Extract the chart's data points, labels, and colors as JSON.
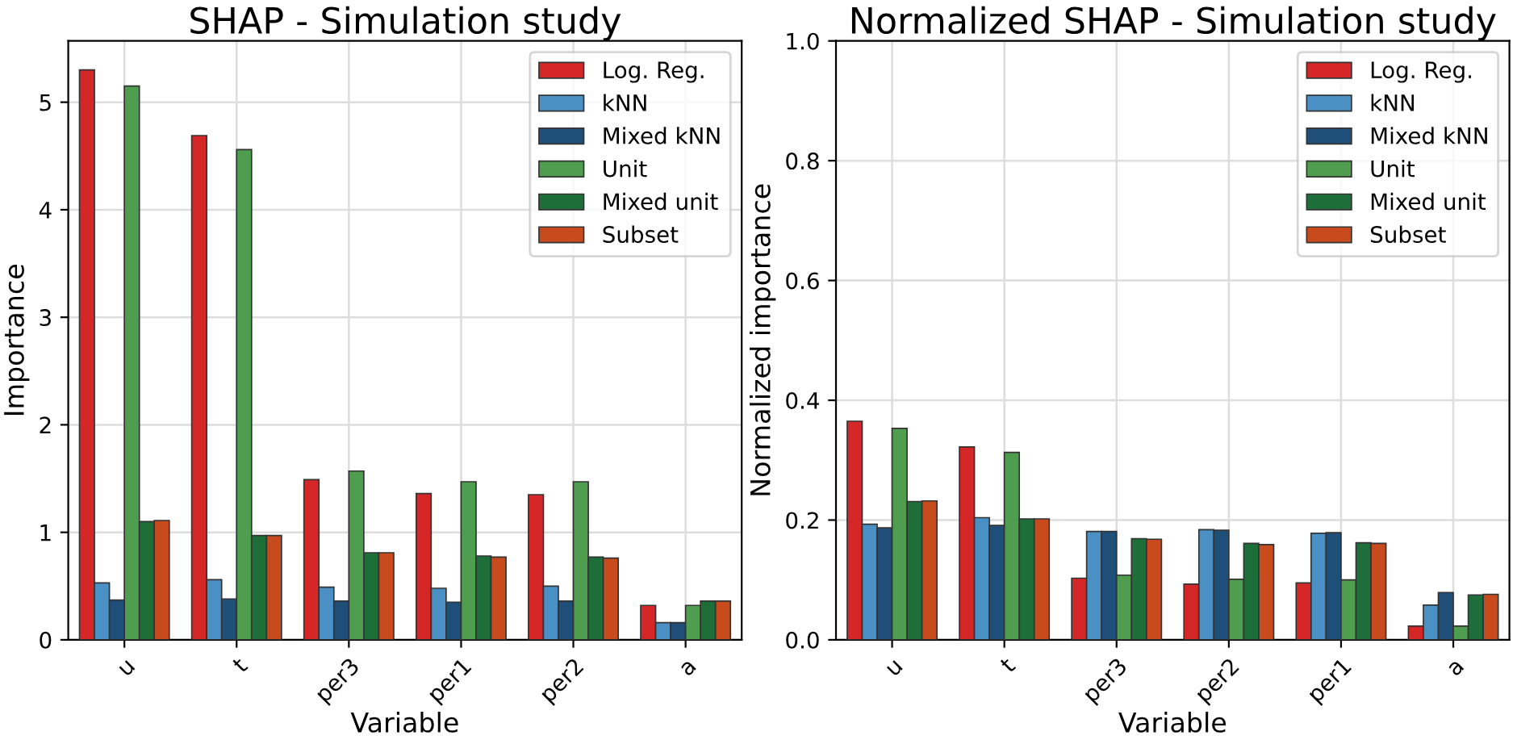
{
  "chart_data": [
    {
      "type": "bar",
      "title": "SHAP - Simulation study",
      "xlabel": "Variable",
      "ylabel": "Importance",
      "categories": [
        "u",
        "t",
        "per3",
        "per1",
        "per2",
        "a"
      ],
      "series": [
        {
          "name": "Log. Reg.",
          "color": "#d62728",
          "values": [
            5.3,
            4.69,
            1.49,
            1.36,
            1.35,
            0.32
          ]
        },
        {
          "name": "kNN",
          "color": "#4a90c4",
          "values": [
            0.53,
            0.56,
            0.49,
            0.48,
            0.5,
            0.16
          ]
        },
        {
          "name": "Mixed kNN",
          "color": "#1f4e79",
          "values": [
            0.37,
            0.38,
            0.36,
            0.35,
            0.36,
            0.16
          ]
        },
        {
          "name": "Unit",
          "color": "#4f9d4f",
          "values": [
            5.15,
            4.56,
            1.57,
            1.47,
            1.47,
            0.32
          ]
        },
        {
          "name": "Mixed unit",
          "color": "#1e6e3a",
          "values": [
            1.1,
            0.97,
            0.81,
            0.78,
            0.77,
            0.36
          ]
        },
        {
          "name": "Subset",
          "color": "#c84b1e",
          "values": [
            1.11,
            0.97,
            0.81,
            0.77,
            0.76,
            0.36
          ]
        }
      ],
      "ylim": [
        0,
        5.57
      ],
      "yticks": [
        0,
        1,
        2,
        3,
        4,
        5
      ],
      "grid": true,
      "legend": "top right"
    },
    {
      "type": "bar",
      "title": "Normalized SHAP - Simulation study",
      "xlabel": "Variable",
      "ylabel": "Normalized importance",
      "categories": [
        "u",
        "t",
        "per3",
        "per2",
        "per1",
        "a"
      ],
      "series": [
        {
          "name": "Log. Reg.",
          "color": "#d62728",
          "values": [
            0.365,
            0.322,
            0.103,
            0.093,
            0.095,
            0.023
          ]
        },
        {
          "name": "kNN",
          "color": "#4a90c4",
          "values": [
            0.193,
            0.204,
            0.181,
            0.184,
            0.178,
            0.058
          ]
        },
        {
          "name": "Mixed kNN",
          "color": "#1f4e79",
          "values": [
            0.187,
            0.191,
            0.181,
            0.183,
            0.179,
            0.079
          ]
        },
        {
          "name": "Unit",
          "color": "#4f9d4f",
          "values": [
            0.353,
            0.313,
            0.108,
            0.101,
            0.1,
            0.023
          ]
        },
        {
          "name": "Mixed unit",
          "color": "#1e6e3a",
          "values": [
            0.231,
            0.202,
            0.169,
            0.161,
            0.162,
            0.075
          ]
        },
        {
          "name": "Subset",
          "color": "#c84b1e",
          "values": [
            0.232,
            0.202,
            0.168,
            0.159,
            0.161,
            0.076
          ]
        }
      ],
      "ylim": [
        0,
        1.0
      ],
      "yticks": [
        {
          "value": 0,
          "label": "0.0"
        },
        0.2,
        0.4,
        0.6,
        0.8,
        {
          "value": 1,
          "label": "1.0"
        }
      ],
      "grid": true,
      "legend": "top right"
    }
  ]
}
